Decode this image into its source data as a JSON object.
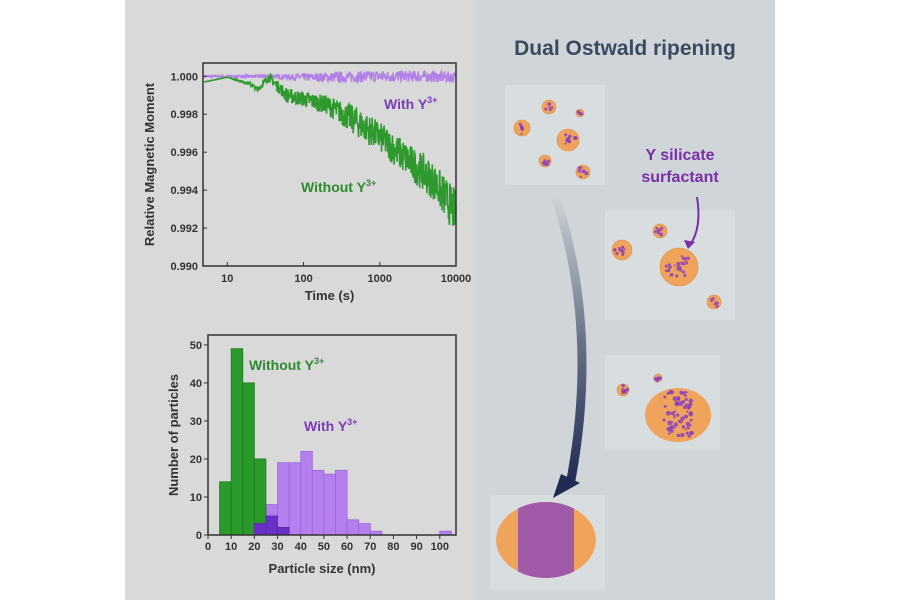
{
  "chart_data": [
    {
      "type": "line",
      "xlabel": "Time (s)",
      "ylabel": "Relative Magnetic Moment",
      "xscale": "log",
      "xlim": [
        4.8,
        10000
      ],
      "ylim": [
        0.99,
        1.0007
      ],
      "xticks": [
        "10",
        "100",
        "1000",
        "10000"
      ],
      "yticks": [
        "0.990",
        "0.992",
        "0.994",
        "0.996",
        "0.998",
        "1.000"
      ],
      "series": [
        {
          "name": "With Y3+",
          "label": "With Y",
          "sup": "3+",
          "color": "#b27ee8",
          "x": [
            5,
            10,
            30,
            100,
            300,
            1000,
            3000,
            10000
          ],
          "y": [
            1.0,
            1.0,
            1.0,
            0.99995,
            0.99995,
            1.0,
            1.0,
            0.99995
          ],
          "noise": [
            5e-05,
            5e-05,
            8e-05,
            0.0002,
            0.0003,
            0.0003,
            0.0003,
            0.0003
          ]
        },
        {
          "name": "Without Y3+",
          "label": "Without Y",
          "sup": "3+",
          "color": "#2e9a2e",
          "x": [
            5,
            10,
            20,
            25,
            35,
            60,
            100,
            200,
            500,
            1000,
            2000,
            5000,
            10000
          ],
          "y": [
            0.9997,
            0.99995,
            0.9996,
            0.9993,
            0.99995,
            0.999,
            0.9988,
            0.9985,
            0.9976,
            0.9968,
            0.9958,
            0.9945,
            0.9928
          ],
          "noise": [
            0,
            0,
            0.0001,
            0.0001,
            0.0002,
            0.0004,
            0.0004,
            0.0005,
            0.0008,
            0.0008,
            0.0009,
            0.001,
            0.0012
          ]
        }
      ]
    },
    {
      "type": "bar",
      "xlabel": "Particle size (nm)",
      "ylabel": "Number of particles",
      "xlim": [
        0,
        107
      ],
      "ylim": [
        0,
        52.6
      ],
      "bin_width": 5,
      "xticks": [
        "0",
        "10",
        "20",
        "30",
        "40",
        "50",
        "60",
        "70",
        "80",
        "90",
        "100"
      ],
      "yticks": [
        "0",
        "10",
        "20",
        "30",
        "40",
        "50"
      ],
      "series": [
        {
          "name": "Without Y3+",
          "label": "Without Y",
          "sup": "3+",
          "color": "#2a9a2a",
          "bin_starts": [
            5,
            10,
            15,
            20
          ],
          "values": [
            14,
            49,
            40,
            20
          ]
        },
        {
          "name": "With Y3+",
          "label": "With Y",
          "sup": "3+",
          "color": "#b57ff0",
          "bin_starts": [
            20,
            25,
            30,
            35,
            40,
            45,
            50,
            55,
            60,
            65,
            70,
            100
          ],
          "values": [
            3,
            8,
            19,
            19,
            22,
            17,
            16,
            17,
            4,
            3,
            1,
            1
          ]
        }
      ],
      "overlap": {
        "color": "#6a2fc8",
        "bin_starts": [
          20,
          25,
          30
        ],
        "values": [
          3,
          5,
          2
        ]
      }
    }
  ],
  "scheme": {
    "title": "Dual Ostwald ripening",
    "annotation_line1": "Y silicate",
    "annotation_line2": "surfactant",
    "colors": {
      "particle": "#f0a35a",
      "surfactant": "#8a3fbf",
      "title": "#3a4a60"
    }
  }
}
